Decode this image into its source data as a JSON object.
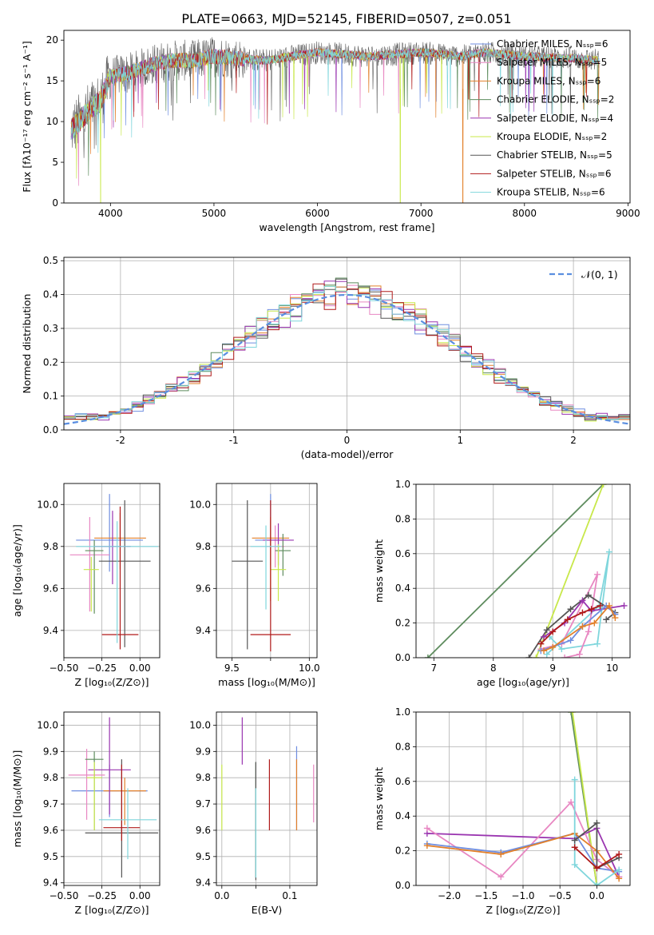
{
  "figure": {
    "title": "PLATE=0663, MJD=52145, FIBERID=0507, z=0.051"
  },
  "series_colors": [
    "#6f8ee0",
    "#e887c2",
    "#e2802a",
    "#5e8c5e",
    "#9a35b0",
    "#c8e84a",
    "#555555",
    "#b01a1a",
    "#7fd6dc"
  ],
  "chart_data": [
    {
      "id": "spectrum",
      "type": "line",
      "xlabel": "wavelength [Angstrom, rest frame]",
      "ylabel": "Flux [fλ10⁻¹⁷ erg cm⁻² s⁻¹ A⁻¹]",
      "xlim": [
        3550,
        9020
      ],
      "ylim": [
        0,
        21.2
      ],
      "xticks": [
        4000,
        5000,
        6000,
        7000,
        8000,
        9000
      ],
      "yticks": [
        0,
        5,
        10,
        15,
        20
      ],
      "grid": false,
      "legend": "upper right",
      "legend_entries": [
        "Chabrier MILES, Nₛₛₚ=6",
        "Salpeter MILES, Nₛₛₚ=5",
        "Kroupa MILES, Nₛₛₚ=6",
        "Chabrier ELODIE, Nₛₛₚ=2",
        "Salpeter ELODIE, Nₛₛₚ=4",
        "Kroupa ELODIE, Nₛₛₚ=2",
        "Chabrier STELIB, Nₛₛₚ=5",
        "Salpeter STELIB, Nₛₛₚ=6",
        "Kroupa STELIB, Nₛₛₚ=6"
      ],
      "spectrum_wavelength_range": [
        3620,
        8720
      ],
      "continuum": {
        "x": [
          3620,
          3700,
          3800,
          3900,
          4000,
          4200,
          4400,
          4600,
          4800,
          5000,
          5500,
          6000,
          6500,
          7000,
          7400,
          7600,
          8000,
          8400,
          8720
        ],
        "y": [
          9,
          10,
          11.5,
          12.5,
          15.5,
          16,
          17,
          17.5,
          17.5,
          18,
          17.5,
          18.5,
          18,
          18.5,
          18,
          18.5,
          18,
          17.8,
          17.5
        ]
      },
      "dropouts": [
        {
          "x": 3905,
          "series": 5
        },
        {
          "x": 6800,
          "series": 5
        },
        {
          "x": 7405,
          "series": 2
        }
      ]
    },
    {
      "id": "residuals",
      "type": "histogram",
      "xlabel": "(data-model)/error",
      "ylabel": "Normed distribution",
      "xlim": [
        -2.5,
        2.5
      ],
      "ylim": [
        0,
        0.51
      ],
      "xticks": [
        -2,
        -1,
        0,
        1,
        2
      ],
      "yticks": [
        0.0,
        0.1,
        0.2,
        0.3,
        0.4,
        0.5
      ],
      "grid": true,
      "legend": "upper right",
      "legend_entries": [
        "𝒩(0, 1)"
      ],
      "bin_width": 0.1,
      "bins_from": -2.5,
      "gaussian": {
        "mean": 0,
        "sigma": 1
      }
    },
    {
      "id": "age-vs-Z",
      "type": "errorbar",
      "xlabel": "Z [log₁₀(Z/Z⊙)]",
      "ylabel": "age  [log₁₀(age/yr)]",
      "xlim": [
        -0.5,
        0.13
      ],
      "ylim": [
        9.27,
        10.1
      ],
      "xticks": [
        -0.5,
        -0.25,
        0.0
      ],
      "xticklabels": [
        "−0.50",
        "−0.25",
        "0.00"
      ],
      "yticks": [
        9.4,
        9.6,
        9.8,
        10.0
      ],
      "grid": true,
      "points": [
        {
          "series": 0,
          "x": -0.2,
          "xerr": 0.22,
          "y": 9.83,
          "yerr": [
            0.15,
            0.22
          ]
        },
        {
          "series": 1,
          "x": -0.33,
          "xerr": 0.13,
          "y": 9.76,
          "yerr": [
            0.27,
            0.18
          ]
        },
        {
          "series": 2,
          "x": -0.13,
          "xerr": 0.17,
          "y": 9.84,
          "yerr": [
            0.15,
            0.12
          ]
        },
        {
          "series": 3,
          "x": -0.3,
          "xerr": 0.06,
          "y": 9.78,
          "yerr": [
            0.3,
            0.05
          ]
        },
        {
          "series": 4,
          "x": -0.18,
          "xerr": 0.12,
          "y": 9.8,
          "yerr": [
            0.18,
            0.17
          ]
        },
        {
          "series": 5,
          "x": -0.32,
          "xerr": 0.05,
          "y": 9.69,
          "yerr": [
            0.2,
            0.06
          ]
        },
        {
          "series": 6,
          "x": -0.1,
          "xerr": 0.17,
          "y": 9.73,
          "yerr": [
            0.41,
            0.29
          ]
        },
        {
          "series": 7,
          "x": -0.13,
          "xerr": 0.12,
          "y": 9.38,
          "yerr": [
            0.07,
            0.61
          ]
        },
        {
          "series": 8,
          "x": -0.15,
          "xerr": 0.27,
          "y": 9.8,
          "yerr": [
            0.46,
            0.12
          ]
        }
      ]
    },
    {
      "id": "age-vs-mass",
      "type": "errorbar",
      "xlabel": "mass [log₁₀(M/M⊙)]",
      "ylabel": "",
      "xlim": [
        9.4,
        10.05
      ],
      "ylim": [
        9.27,
        10.1
      ],
      "xticks": [
        9.5,
        9.75,
        10.0
      ],
      "xticklabels": [
        "9.5",
        "",
        "10.0"
      ],
      "yticks": [
        9.4,
        9.6,
        9.8,
        10.0
      ],
      "grid": true,
      "points": [
        {
          "series": 0,
          "x": 9.75,
          "xerr": 0.1,
          "y": 9.83,
          "yerr": [
            0.12,
            0.22
          ]
        },
        {
          "series": 1,
          "x": 9.78,
          "xerr": 0.06,
          "y": 9.8,
          "yerr": [
            0.1,
            0.1
          ]
        },
        {
          "series": 2,
          "x": 9.75,
          "xerr": 0.12,
          "y": 9.84,
          "yerr": [
            0.3,
            0.1
          ]
        },
        {
          "series": 3,
          "x": 9.83,
          "xerr": 0.05,
          "y": 9.78,
          "yerr": [
            0.12,
            0.08
          ]
        },
        {
          "series": 4,
          "x": 9.8,
          "xerr": 0.1,
          "y": 9.83,
          "yerr": [
            0.12,
            0.08
          ]
        },
        {
          "series": 5,
          "x": 9.8,
          "xerr": 0.05,
          "y": 9.69,
          "yerr": [
            0.15,
            0.12
          ]
        },
        {
          "series": 6,
          "x": 9.6,
          "xerr": 0.1,
          "y": 9.73,
          "yerr": [
            0.42,
            0.29
          ]
        },
        {
          "series": 7,
          "x": 9.75,
          "xerr": 0.13,
          "y": 9.38,
          "yerr": [
            0.08,
            0.64
          ]
        },
        {
          "series": 8,
          "x": 9.72,
          "xerr": 0.1,
          "y": 9.8,
          "yerr": [
            0.3,
            0.1
          ]
        }
      ]
    },
    {
      "id": "weight-vs-age",
      "type": "line",
      "xlabel": "age  [log₁₀(age/yr)]",
      "ylabel": "mass weight",
      "xlim": [
        6.7,
        10.3
      ],
      "ylim": [
        0,
        1.0
      ],
      "xticks": [
        7,
        8,
        9,
        10
      ],
      "yticks": [
        0.0,
        0.2,
        0.4,
        0.6,
        0.8,
        1.0
      ],
      "grid": true,
      "series": [
        {
          "series": 3,
          "x": [
            6.9,
            9.85
          ],
          "y": [
            0.0,
            1.0
          ]
        },
        {
          "series": 5,
          "x": [
            8.72,
            9.85
          ],
          "y": [
            0.0,
            1.0
          ]
        },
        {
          "series": 8,
          "x": [
            8.95,
            9.15,
            9.75,
            9.95,
            9.78,
            8.9
          ],
          "y": [
            0.12,
            0.05,
            0.08,
            0.61,
            0.3,
            0.02
          ]
        },
        {
          "series": 1,
          "x": [
            8.8,
            9.15,
            9.75,
            9.6,
            9.45,
            9.2
          ],
          "y": [
            0.05,
            0.08,
            0.48,
            0.15,
            0.02,
            0.0
          ]
        },
        {
          "series": 6,
          "x": [
            8.6,
            8.9,
            9.3,
            9.6,
            10.05,
            9.9
          ],
          "y": [
            0.0,
            0.16,
            0.28,
            0.36,
            0.26,
            0.22
          ]
        },
        {
          "series": 4,
          "x": [
            8.85,
            9.2,
            9.5,
            9.65,
            10.2
          ],
          "y": [
            0.12,
            0.2,
            0.33,
            0.27,
            0.3
          ]
        },
        {
          "series": 7,
          "x": [
            8.8,
            9.0,
            9.25,
            9.5,
            9.65,
            9.8
          ],
          "y": [
            0.08,
            0.15,
            0.22,
            0.26,
            0.28,
            0.3
          ]
        },
        {
          "series": 0,
          "x": [
            8.8,
            9.3,
            9.5,
            9.9,
            10.05
          ],
          "y": [
            0.04,
            0.1,
            0.18,
            0.3,
            0.25
          ]
        },
        {
          "series": 2,
          "x": [
            8.85,
            9.0,
            9.5,
            9.7,
            9.95,
            10.05
          ],
          "y": [
            0.04,
            0.06,
            0.18,
            0.2,
            0.3,
            0.23
          ]
        }
      ]
    },
    {
      "id": "mass-vs-Z",
      "type": "errorbar",
      "xlabel": "Z [log₁₀(Z/Z⊙)]",
      "ylabel": "mass [log₁₀(M/M⊙)]",
      "xlim": [
        -0.5,
        0.13
      ],
      "ylim": [
        9.39,
        10.05
      ],
      "xticks": [
        -0.5,
        -0.25,
        0.0
      ],
      "xticklabels": [
        "−0.50",
        "−0.25",
        "0.00"
      ],
      "yticks": [
        9.4,
        9.5,
        9.6,
        9.7,
        9.8,
        9.9,
        10.0
      ],
      "grid": true,
      "points": [
        {
          "series": 0,
          "x": -0.2,
          "xerr": 0.25,
          "y": 9.75,
          "yerr": [
            0.1,
            0.1
          ]
        },
        {
          "series": 1,
          "x": -0.35,
          "xerr": 0.12,
          "y": 9.81,
          "yerr": [
            0.17,
            0.1
          ]
        },
        {
          "series": 2,
          "x": -0.1,
          "xerr": 0.14,
          "y": 9.75,
          "yerr": [
            0.13,
            0.05
          ]
        },
        {
          "series": 3,
          "x": -0.3,
          "xerr": 0.06,
          "y": 9.87,
          "yerr": [
            0.27,
            0.03
          ]
        },
        {
          "series": 4,
          "x": -0.2,
          "xerr": 0.14,
          "y": 9.83,
          "yerr": [
            0.17,
            0.2
          ]
        },
        {
          "series": 5,
          "x": -0.3,
          "xerr": 0.05,
          "y": 9.8,
          "yerr": [
            0.2,
            0.06
          ]
        },
        {
          "series": 6,
          "x": -0.12,
          "xerr": 0.24,
          "y": 9.59,
          "yerr": [
            0.17,
            0.28
          ]
        },
        {
          "series": 7,
          "x": -0.12,
          "xerr": 0.12,
          "y": 9.61,
          "yerr": [
            0.05,
            0.24
          ]
        },
        {
          "series": 8,
          "x": -0.08,
          "xerr": 0.19,
          "y": 9.64,
          "yerr": [
            0.15,
            0.12
          ]
        }
      ]
    },
    {
      "id": "mass-vs-EBV",
      "type": "errorbar",
      "xlabel": "E(B-V)",
      "ylabel": "",
      "xlim": [
        -0.008,
        0.14
      ],
      "ylim": [
        9.39,
        10.05
      ],
      "xticks": [
        0.0,
        0.05,
        0.1
      ],
      "xticklabels": [
        "0.0",
        "",
        "0.1"
      ],
      "yticks": [
        9.4,
        9.5,
        9.6,
        9.7,
        9.8,
        9.9,
        10.0
      ],
      "grid": true,
      "points": [
        {
          "series": 0,
          "x": 0.11,
          "xerr": 0,
          "y": 9.8,
          "yerr": [
            0.2,
            0.12
          ]
        },
        {
          "series": 1,
          "x": 0.135,
          "xerr": 0,
          "y": 9.75,
          "yerr": [
            0.12,
            0.1
          ]
        },
        {
          "series": 2,
          "x": 0.11,
          "xerr": 0,
          "y": 9.75,
          "yerr": [
            0.15,
            0.12
          ]
        },
        {
          "series": 3,
          "x": 0.05,
          "xerr": 0,
          "y": 9.7,
          "yerr": [
            0.28,
            0.16
          ]
        },
        {
          "series": 4,
          "x": 0.03,
          "xerr": 0,
          "y": 9.95,
          "yerr": [
            0.1,
            0.08
          ]
        },
        {
          "series": 5,
          "x": 0.0,
          "xerr": 0,
          "y": 9.75,
          "yerr": [
            0.15,
            0.1
          ]
        },
        {
          "series": 6,
          "x": 0.05,
          "xerr": 0,
          "y": 9.59,
          "yerr": [
            0.18,
            0.27
          ]
        },
        {
          "series": 7,
          "x": 0.07,
          "xerr": 0,
          "y": 9.75,
          "yerr": [
            0.15,
            0.12
          ]
        },
        {
          "series": 8,
          "x": 0.05,
          "xerr": 0,
          "y": 9.59,
          "yerr": [
            0.17,
            0.17
          ]
        }
      ]
    },
    {
      "id": "weight-vs-Z",
      "type": "line",
      "xlabel": "Z [log₁₀(Z/Z⊙)]",
      "ylabel": "mass weight",
      "xlim": [
        -2.45,
        0.45
      ],
      "ylim": [
        0,
        1.0
      ],
      "xticks": [
        -2.0,
        -1.5,
        -1.0,
        -0.5,
        0.0
      ],
      "xticklabels": [
        "−2.0",
        "−1.5",
        "−1.0",
        "−0.5",
        "0.0"
      ],
      "yticks": [
        0.0,
        0.2,
        0.4,
        0.6,
        0.8,
        1.0
      ],
      "grid": true,
      "series": [
        {
          "series": 3,
          "x": [
            -0.35,
            0.0
          ],
          "y": [
            1.0,
            0.0
          ]
        },
        {
          "series": 5,
          "x": [
            -0.33,
            0.0
          ],
          "y": [
            1.0,
            0.0
          ]
        },
        {
          "series": 4,
          "x": [
            -2.3,
            -0.3,
            0.0,
            0.3
          ],
          "y": [
            0.3,
            0.27,
            0.33,
            0.05
          ]
        },
        {
          "series": 1,
          "x": [
            -2.3,
            -1.3,
            -0.35,
            0.0,
            0.3
          ],
          "y": [
            0.33,
            0.05,
            0.48,
            0.15,
            0.05
          ]
        },
        {
          "series": 0,
          "x": [
            -2.3,
            -1.3,
            -0.3,
            0.0,
            0.3
          ],
          "y": [
            0.24,
            0.19,
            0.3,
            0.1,
            0.08
          ]
        },
        {
          "series": 2,
          "x": [
            -2.3,
            -1.3,
            -0.3,
            0.0,
            0.3
          ],
          "y": [
            0.23,
            0.18,
            0.3,
            0.2,
            0.04
          ]
        },
        {
          "series": 8,
          "x": [
            -0.3,
            -0.3,
            0.0,
            0.3
          ],
          "y": [
            0.61,
            0.12,
            0.0,
            0.09
          ]
        },
        {
          "series": 6,
          "x": [
            -0.3,
            0.0,
            0.0,
            0.3
          ],
          "y": [
            0.26,
            0.36,
            0.1,
            0.16
          ]
        },
        {
          "series": 7,
          "x": [
            -0.3,
            0.0,
            0.3
          ],
          "y": [
            0.22,
            0.1,
            0.18
          ]
        }
      ]
    }
  ]
}
